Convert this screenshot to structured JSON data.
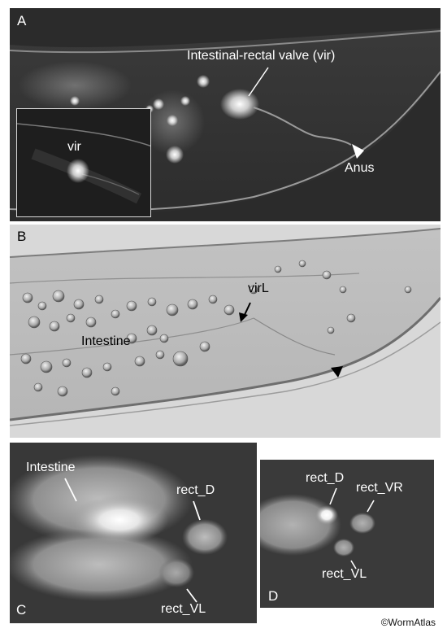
{
  "panels": {
    "a": {
      "letter": "A",
      "label_valve": "Intestinal-rectal valve (vir)",
      "label_anus": "Anus",
      "inset_label": "vir"
    },
    "b": {
      "letter": "B",
      "label_virl": "virL",
      "label_intestine": "Intestine"
    },
    "c": {
      "letter": "C",
      "label_intestine": "Intestine",
      "label_rect_d": "rect_D",
      "label_rect_vl": "rect_VL"
    },
    "d": {
      "letter": "D",
      "label_rect_d": "rect_D",
      "label_rect_vr": "rect_VR",
      "label_rect_vl": "rect_VL"
    }
  },
  "credit": "©WormAtlas"
}
